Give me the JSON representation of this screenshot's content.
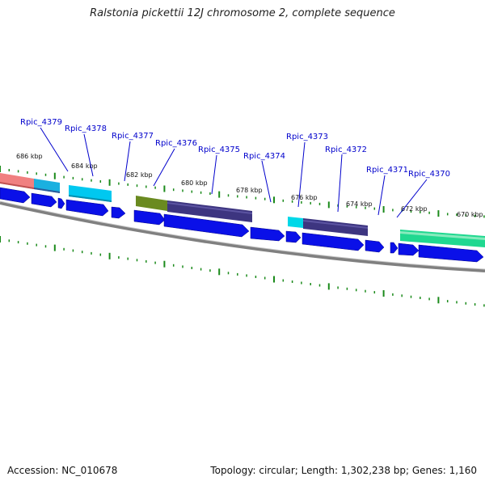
{
  "title": "Ralstonia pickettii 12J chromosome 2, complete sequence",
  "footer": {
    "accession": "Accession: NC_010678",
    "summary": "Topology: circular; Length: 1,302,238 bp; Genes: 1,160"
  },
  "colors": {
    "backbone": "#808080",
    "cds_arrow": "#0a10e8",
    "tick": "#1a8a1a",
    "label": "#0000cc",
    "kbp_label": "#111111"
  },
  "kbp_labels": [
    "686 kbp",
    "684 kbp",
    "682 kbp",
    "680 kbp",
    "678 kbp",
    "676 kbp",
    "674 kbp",
    "672 kbp",
    "670 kbp"
  ],
  "gene_labels": [
    "Rpic_4379",
    "Rpic_4378",
    "Rpic_4377",
    "Rpic_4376",
    "Rpic_4375",
    "Rpic_4374",
    "Rpic_4373",
    "Rpic_4372",
    "Rpic_4371",
    "Rpic_4370"
  ],
  "feature_colors": [
    "#f08080",
    "#1ab0e0",
    "#00c8f0",
    "#6a8a20",
    "#3d3580",
    "#00d8e8",
    "#3d3580",
    "#20d890"
  ]
}
